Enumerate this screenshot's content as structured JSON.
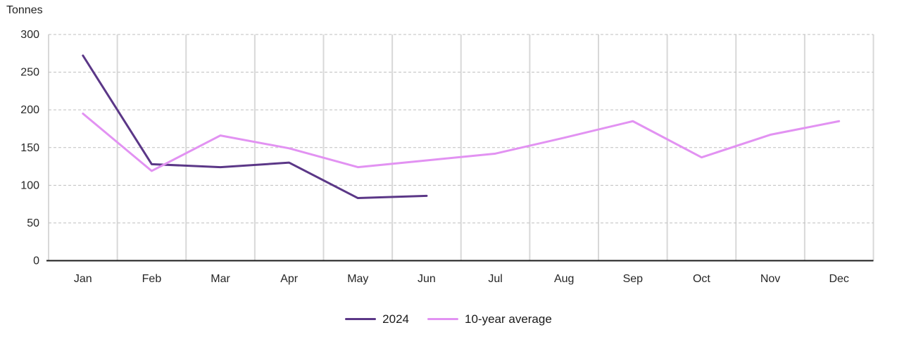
{
  "chart_data": {
    "type": "line",
    "title": "",
    "ylabel": "Tonnes",
    "xlabel": "",
    "categories": [
      "Jan",
      "Feb",
      "Mar",
      "Apr",
      "May",
      "Jun",
      "Jul",
      "Aug",
      "Sep",
      "Oct",
      "Nov",
      "Dec"
    ],
    "series": [
      {
        "name": "2024",
        "color": "#5b3787",
        "values": [
          272,
          128,
          124,
          130,
          83,
          86,
          null,
          null,
          null,
          null,
          null,
          null
        ]
      },
      {
        "name": "10-year average",
        "color": "#e292f2",
        "values": [
          195,
          119,
          166,
          149,
          124,
          133,
          142,
          163,
          185,
          137,
          167,
          185
        ]
      }
    ],
    "ylim": [
      0,
      300
    ],
    "ytick_step": 50,
    "yticks": [
      0,
      50,
      100,
      150,
      200,
      250,
      300
    ],
    "grid": {
      "horizontal": "dashed",
      "vertical": "solid"
    },
    "legend_position": "bottom-center"
  },
  "colors": {
    "grid_vertical": "#d8d8d8",
    "grid_horizontal": "#bfbfbf",
    "axis_line": "#1a1a1a",
    "tick_text": "#262626"
  }
}
